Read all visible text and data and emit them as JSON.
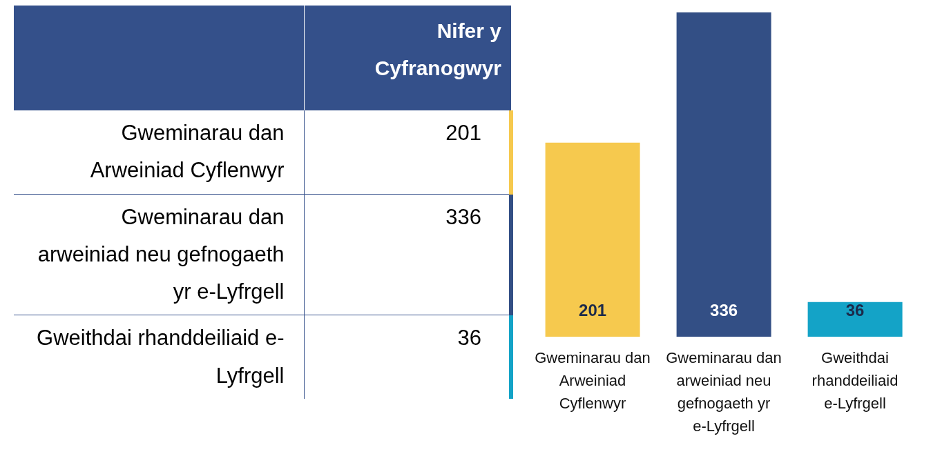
{
  "chart_data": [
    {
      "type": "other",
      "categories": [
        "Gweminarau dan Arweiniad Cyflenwyr",
        "Gweminarau dan arweiniad neu gefnogaeth yr e-Lyfrgell",
        "Gweithdai rhanddeiliaid e-Lyfrgell"
      ],
      "values": [
        201,
        336,
        36
      ],
      "colors": [
        "#f6c94e",
        "#334f85",
        "#14a3c7"
      ],
      "annotations": [
        "Nifer y Cyfranogwyr"
      ],
      "data_labels": true
    },
    {
      "type": "bar",
      "categories": [
        "Gweminarau dan Arweiniad Cyflenwyr",
        "Gweminarau dan arweiniad neu gefnogaeth yr e-Lyfrgell",
        "Gweithdai rhanddeiliaid e-Lyfrgell"
      ],
      "values": [
        201,
        336,
        36
      ],
      "colors": [
        "#f6c94e",
        "#334f85",
        "#14a3c7"
      ],
      "data_labels": true,
      "legend": false,
      "grid": false
    }
  ]
}
